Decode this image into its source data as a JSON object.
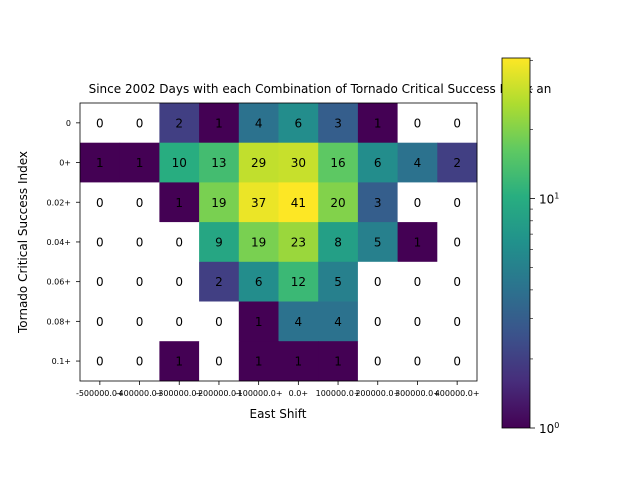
{
  "chart_data": {
    "type": "heatmap",
    "title": "Since 2002 Days with each Combination of Tornado Critical Success Index an",
    "xlabel": "East Shift",
    "ylabel": "Tornado Critical Success Index",
    "x_categories": [
      "-500000.0+",
      "-400000.0+",
      "-300000.0+",
      "-200000.0+",
      "-100000.0+",
      "0.0+",
      "100000.0+",
      "200000.0+",
      "300000.0+",
      "400000.0+"
    ],
    "x_tick_labels_as_displayed": [
      "-500000.0+",
      "-400000.0+",
      "-300000.0+",
      "-200000.0+",
      "-100000.0+",
      "0.0+",
      "100000.0+",
      "200000.0+",
      "300000.0+",
      "400000.0+"
    ],
    "y_categories": [
      "0",
      "0+",
      "0.02+",
      "0.04+",
      "0.06+",
      "0.08+",
      "0.1+"
    ],
    "values": [
      [
        0,
        0,
        2,
        1,
        4,
        6,
        3,
        1,
        0,
        0
      ],
      [
        1,
        1,
        10,
        13,
        29,
        30,
        16,
        6,
        4,
        2
      ],
      [
        0,
        0,
        1,
        19,
        37,
        41,
        20,
        3,
        0,
        0
      ],
      [
        0,
        0,
        0,
        9,
        19,
        23,
        8,
        5,
        1,
        0
      ],
      [
        0,
        0,
        0,
        2,
        6,
        12,
        5,
        0,
        0,
        0
      ],
      [
        0,
        0,
        0,
        0,
        1,
        4,
        4,
        0,
        0,
        0
      ],
      [
        0,
        0,
        1,
        0,
        1,
        1,
        1,
        0,
        0,
        0
      ]
    ],
    "colorbar": {
      "scale": "log",
      "range": [
        1,
        41
      ],
      "colormap": "viridis",
      "tick_labels": [
        "10^0",
        "10^1"
      ],
      "tick_values": [
        1,
        10
      ]
    },
    "zero_cell_color": "#ffffff",
    "grid": false
  }
}
